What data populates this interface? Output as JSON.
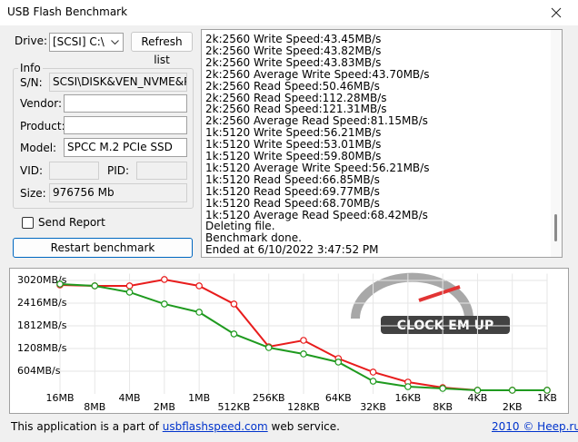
{
  "window": {
    "title": "USB Flash Benchmark"
  },
  "form": {
    "drive_label": "Drive:",
    "drive_value": "[SCSI] C:\\",
    "refresh_button": "Refresh list",
    "info_group": "Info",
    "sn_label": "S/N:",
    "sn_value": "SCSI\\DISK&VEN_NVME&PRO",
    "vendor_label": "Vendor:",
    "product_label": "Product:",
    "model_label": "Model:",
    "model_value": "SPCC M.2 PCIe SSD",
    "vid_label": "VID:",
    "pid_label": "PID:",
    "size_label": "Size:",
    "size_value": "976756 Mb",
    "send_report": "Send Report",
    "restart_button": "Restart benchmark"
  },
  "log": {
    "lines": [
      "2k:2560 Write Speed:43.45MB/s",
      "2k:2560 Write Speed:43.82MB/s",
      "2k:2560 Write Speed:43.83MB/s",
      "2k:2560 Average Write Speed:43.70MB/s",
      "2k:2560 Read Speed:50.46MB/s",
      "2k:2560 Read Speed:112.28MB/s",
      "2k:2560 Read Speed:121.31MB/s",
      "2k:2560 Average Read Speed:81.15MB/s",
      "1k:5120 Write Speed:56.21MB/s",
      "1k:5120 Write Speed:53.01MB/s",
      "1k:5120 Write Speed:59.80MB/s",
      "1k:5120 Average Write Speed:56.21MB/s",
      "1k:5120 Read Speed:66.85MB/s",
      "1k:5120 Read Speed:69.77MB/s",
      "1k:5120 Read Speed:68.70MB/s",
      "1k:5120 Average Read Speed:68.42MB/s",
      "Deleting file.",
      "Benchmark done.",
      "Ended at 6/10/2022 3:47:52 PM"
    ]
  },
  "chart_data": {
    "type": "line",
    "watermark": "CLOCK EM UP",
    "categories": [
      "16MB",
      "8MB",
      "4MB",
      "2MB",
      "1MB",
      "512KB",
      "256KB",
      "128KB",
      "64KB",
      "32KB",
      "16KB",
      "8KB",
      "4KB",
      "2KB",
      "1KB"
    ],
    "series": [
      {
        "color": "#e81c1c",
        "values": [
          2899,
          2875,
          2875,
          3044,
          2875,
          2392,
          1256,
          1425,
          942,
          580,
          314,
          169,
          97,
          97,
          97
        ]
      },
      {
        "color": "#1f9a1f",
        "values": [
          2923,
          2875,
          2706,
          2392,
          2174,
          1595,
          1232,
          1063,
          846,
          338,
          193,
          145,
          97,
          97,
          97
        ]
      }
    ],
    "ylim": [
      0,
      3200
    ],
    "yticks": [
      {
        "value": 604,
        "label": "604MB/s"
      },
      {
        "value": 1208,
        "label": "1208MB/s"
      },
      {
        "value": 1812,
        "label": "1812MB/s"
      },
      {
        "value": 2416,
        "label": "2416MB/s"
      },
      {
        "value": 3020,
        "label": "3020MB/s"
      }
    ],
    "grid": true
  },
  "footer": {
    "text_before": "This application is a part of",
    "link": "usbflashspeed.com",
    "text_after": "web service.",
    "copyright": "2010 © Heep.ru"
  }
}
